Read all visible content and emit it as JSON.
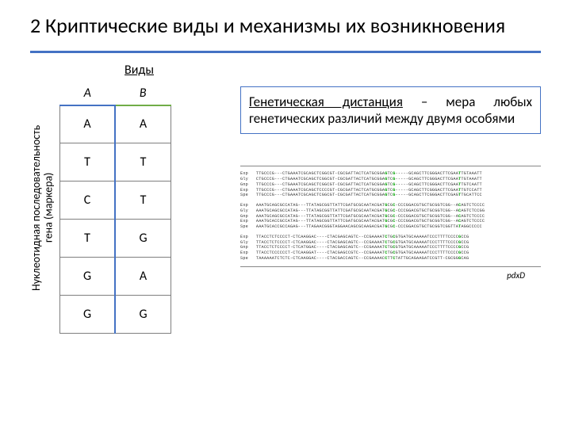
{
  "title": "2 Криптические виды и механизмы их возникновения",
  "species_label": "Виды",
  "y_axis_label": "Нуклеотидная последовательность\nгена (маркера)",
  "table": {
    "headers": [
      "A",
      "B"
    ],
    "rows": [
      [
        "A",
        "A"
      ],
      [
        "T",
        "T"
      ],
      [
        "C",
        "T"
      ],
      [
        "T",
        "G"
      ],
      [
        "G",
        "A"
      ],
      [
        "G",
        "G"
      ]
    ],
    "col_a_color": "#4472c4",
    "col_b_color": "#70ad47",
    "cell_border": "#7f7f7f"
  },
  "definition": {
    "term": "Генетическая дистанция",
    "rest": " – мера любых генетических различий между двумя особями",
    "border_color": "#4472c4"
  },
  "alignment": {
    "groups": [
      [
        "Exp   TTGCCCG---CTGAAATCGCAGCTCGGCGT-CGCGATTACTCATGCGGAGTCG-----GCAGCTTCGGGACTTCGAATTGTAAATT",
        "Gly   CTGCCCG---CTGAAATCGCAGCTCGGCGT-CGCGATTACTCATGCGGAGTCG-----GCAGCTTCGGGACTTCGAATTGTAAATT",
        "Gnp   TTGCCCG---CTGAAATCGCAGCTCGGCGT-CGCGATTACTCATGCGGAGTCG-----GCAGCTTCGGGACTTCGAATTGTCAATT",
        "Exp   TTGCCCG---CTGAAATCGCAGCTCCCCGT-CGCGATTACTCATGCGGAGTCG-----GCAGCTTCGGGACTTCGAATTGTCCATT",
        "Spe   TTGCCCG---CTGAAATCGCAGCTCGGCGT-CGCGATTACTCATGCGGAGTCG-----GCAGCTTCGGGACTTCGAGTTGCATTCC"
      ],
      [
        "Exp   AAATGCAGCGCCATAG---TTATAGCGGTTATTCGATGCGCAATACGATGCGC-CCCGGACGTGCTGCGGTCGG--ACAGTCTCCCC",
        "Gly   AAATGCAGCGCCATAG---TTATAGCGGTTATTCGATGCGCAATACGATGCGC-CCCGGACGTGCTGCGGTCGG--ACAGTCTCCGG",
        "Gnp   AAATGCAGCGCCATAG---TTATAGCGGTTATTCGATGCGCAATACGATGCGC-CCCGGACGTGCTGCGGTCGG--ACAGTCTCCCC",
        "Exp   AAATGCACCGCCATAG---TTATAGCGGTTATTCGATGCGCAATACGATGCGC-CCCGGACGTGCTGCGGTCGG--ACAGTCTCCCC",
        "Spe   AAATGCACCGCCAGAG---TTAGAACGGGTAGGAACAGCGCAAGACGATGCGC-CCCGGACGTGCTGCGGTCGGTTATAGGCCCCC"
      ],
      [
        "Exp   TTACCTCTCCCCT-CTCAAGGAC----CTACGAGCAGTC--CCGAAAATCTGCGTGATGCAAAAATCCCTTTTCCCCGCCG",
        "Gly   TTACCTCTCCCCT-CTCAAGGAC----CTACGAGCAGTC--CCGAAAATCTGCGTGATGCAAAAATCCCTTTTCCCCGCCG",
        "Gnp   TTACCTCTCCCCT-CTCATGGAC----CTACGAGCAGTC--CCGAAAATCTGCGTGATGCAAAAATCCCTTTTCCCCGCCG",
        "Exp   TTACCTCCCCCCT-CTCAAGGAT----CTACGAGCCGTC--CCGAAAATCTGCGTGATGCAAAAATCCCTTTTCCCCGCCG",
        "Spe   TAAAAAATCTCTC-CTCAAGGAC----CTACGACCAGTC--CCGAAAACCTTCTATTGCAGAAGATCCGTT-CGCGGGCAG"
      ]
    ],
    "highlight_color": "#00a000"
  },
  "ref_label": "pdxD",
  "colors": {
    "title_underline": "#4472c4",
    "background": "#ffffff"
  }
}
